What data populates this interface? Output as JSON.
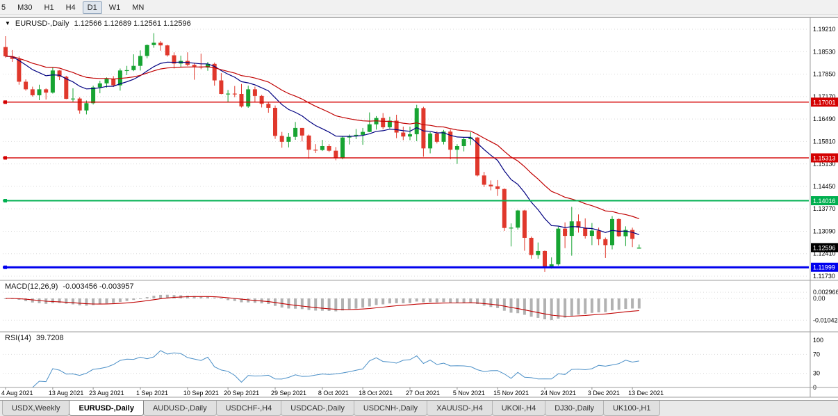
{
  "icons": {
    "collapse_triangle": "▼"
  },
  "toolbar": {
    "timeframes": [
      {
        "label": "5"
      },
      {
        "label": "M30"
      },
      {
        "label": "H1"
      },
      {
        "label": "H4"
      },
      {
        "label": "D1",
        "active": true
      },
      {
        "label": "W1"
      },
      {
        "label": "MN"
      }
    ]
  },
  "chart": {
    "symbol_label": "EURUSD-,Daily",
    "ohlc_display": "1.12566 1.12689 1.12561 1.12596",
    "price_axis_labels": [
      "1.19210",
      "1.18530",
      "1.17850",
      "1.17170",
      "1.16490",
      "1.15810",
      "1.15130",
      "1.14450",
      "1.13770",
      "1.13090",
      "1.12410",
      "1.11730"
    ],
    "hlines": [
      {
        "name": "resistance-line-upper",
        "value": 1.17001,
        "label": "1.17001",
        "color": "#d40000",
        "width": 1.4
      },
      {
        "name": "resistance-line-mid",
        "value": 1.15313,
        "label": "1.15313",
        "color": "#d40000",
        "width": 1.4
      },
      {
        "name": "support-line-green",
        "value": 1.14016,
        "label": "1.14016",
        "color": "#00b050",
        "width": 2
      },
      {
        "name": "support-line-blue",
        "value": 1.11999,
        "label": "1.11999",
        "color": "#0000ee",
        "width": 3
      }
    ],
    "current_price": {
      "value": 1.12596,
      "label": "1.12596",
      "color": "#000000"
    },
    "date_labels": [
      {
        "index": 0,
        "text": "4 Aug 2021"
      },
      {
        "index": 7,
        "text": "13 Aug 2021"
      },
      {
        "index": 13,
        "text": "23 Aug 2021"
      },
      {
        "index": 20,
        "text": "1 Sep 2021"
      },
      {
        "index": 27,
        "text": "10 Sep 2021"
      },
      {
        "index": 33,
        "text": "20 Sep 2021"
      },
      {
        "index": 40,
        "text": "29 Sep 2021"
      },
      {
        "index": 47,
        "text": "8 Oct 2021"
      },
      {
        "index": 53,
        "text": "18 Oct 2021"
      },
      {
        "index": 60,
        "text": "27 Oct 2021"
      },
      {
        "index": 67,
        "text": "5 Nov 2021"
      },
      {
        "index": 73,
        "text": "15 Nov 2021"
      },
      {
        "index": 80,
        "text": "24 Nov 2021"
      },
      {
        "index": 87,
        "text": "3 Dec 2021"
      },
      {
        "index": 93,
        "text": "13 Dec 2021"
      }
    ],
    "colors": {
      "up": "#17a432",
      "down": "#e0382c",
      "ma_fast": "#000080",
      "ma_slow": "#c00000"
    }
  },
  "macd": {
    "title": "MACD(12,26,9)",
    "values": "-0.003456 -0.003957",
    "axis_labels": [
      {
        "value": 0.002966,
        "text": "0.002966"
      },
      {
        "value": 0,
        "text": "0.00"
      },
      {
        "value": -0.010424,
        "text": "-0.010424"
      }
    ],
    "histogram_color": "#b2b2b2",
    "signal_color": "#c00000"
  },
  "rsi": {
    "title": "RSI(14)",
    "value": "39.7208",
    "axis_labels": [
      {
        "value": 100,
        "text": "100"
      },
      {
        "value": 70,
        "text": "70"
      },
      {
        "value": 30,
        "text": "30"
      },
      {
        "value": 0,
        "text": "0"
      }
    ],
    "line_color": "#4a8fc7"
  },
  "tabs": [
    {
      "label": "USDX,Weekly"
    },
    {
      "label": "EURUSD-,Daily",
      "active": true
    },
    {
      "label": "AUDUSD-,Daily"
    },
    {
      "label": "USDCHF-,H4"
    },
    {
      "label": "USDCAD-,Daily"
    },
    {
      "label": "USDCNH-,Daily"
    },
    {
      "label": "XAUUSD-,H4"
    },
    {
      "label": "UKOil-,H4"
    },
    {
      "label": "DJ30-,Daily"
    },
    {
      "label": "UK100-,H1"
    }
  ],
  "chart_data": {
    "type": "candlestick",
    "symbol": "EURUSD-",
    "period": "Daily",
    "title": "EURUSD-,Daily",
    "y_range": [
      1.1173,
      1.1921
    ],
    "overlays": [
      "EMA(12)",
      "EMA(26)"
    ],
    "lower_panels": [
      "MACD(12,26,9)",
      "RSI(14)"
    ],
    "x_axis_labels": [
      "4 Aug 2021",
      "13 Aug 2021",
      "23 Aug 2021",
      "1 Sep 2021",
      "10 Sep 2021",
      "20 Sep 2021",
      "29 Sep 2021",
      "8 Oct 2021",
      "18 Oct 2021",
      "27 Oct 2021",
      "5 Nov 2021",
      "15 Nov 2021",
      "24 Nov 2021",
      "3 Dec 2021",
      "13 Dec 2021"
    ],
    "ohlc": [
      [
        1.1867,
        1.19,
        1.1835,
        1.1839
      ],
      [
        1.1839,
        1.1858,
        1.1822,
        1.1831
      ],
      [
        1.1831,
        1.1839,
        1.1753,
        1.1762
      ],
      [
        1.1762,
        1.1769,
        1.1735,
        1.1739
      ],
      [
        1.1739,
        1.1747,
        1.1717,
        1.1721
      ],
      [
        1.1721,
        1.1753,
        1.1706,
        1.1739
      ],
      [
        1.1739,
        1.1742,
        1.1708,
        1.1729
      ],
      [
        1.1729,
        1.1805,
        1.1726,
        1.1796
      ],
      [
        1.1796,
        1.1797,
        1.1767,
        1.1777
      ],
      [
        1.1777,
        1.178,
        1.1709,
        1.171
      ],
      [
        1.171,
        1.1742,
        1.1701,
        1.1711
      ],
      [
        1.1711,
        1.1715,
        1.1665,
        1.1675
      ],
      [
        1.1675,
        1.1705,
        1.1663,
        1.1697
      ],
      [
        1.1697,
        1.175,
        1.1693,
        1.1745
      ],
      [
        1.1745,
        1.1765,
        1.1727,
        1.1757
      ],
      [
        1.1757,
        1.1775,
        1.1744,
        1.1771
      ],
      [
        1.1771,
        1.1779,
        1.1746,
        1.1751
      ],
      [
        1.1751,
        1.1802,
        1.1735,
        1.1796
      ],
      [
        1.1796,
        1.181,
        1.1782,
        1.1797
      ],
      [
        1.1797,
        1.1845,
        1.1794,
        1.181
      ],
      [
        1.181,
        1.1857,
        1.1796,
        1.184
      ],
      [
        1.184,
        1.1875,
        1.1833,
        1.1873
      ],
      [
        1.1873,
        1.1909,
        1.1865,
        1.188
      ],
      [
        1.188,
        1.1885,
        1.1856,
        1.1872
      ],
      [
        1.1872,
        1.1874,
        1.1838,
        1.1842
      ],
      [
        1.1842,
        1.1851,
        1.1802,
        1.1817
      ],
      [
        1.1817,
        1.1841,
        1.1805,
        1.1825
      ],
      [
        1.1825,
        1.1851,
        1.1809,
        1.1813
      ],
      [
        1.1813,
        1.1818,
        1.1768,
        1.1808
      ],
      [
        1.1808,
        1.1847,
        1.18,
        1.1805
      ],
      [
        1.1805,
        1.1822,
        1.1795,
        1.1816
      ],
      [
        1.1816,
        1.182,
        1.175,
        1.1766
      ],
      [
        1.1766,
        1.1788,
        1.1724,
        1.1725
      ],
      [
        1.1725,
        1.1737,
        1.17,
        1.1726
      ],
      [
        1.1726,
        1.1749,
        1.1715,
        1.1725
      ],
      [
        1.1725,
        1.1755,
        1.1684,
        1.1687
      ],
      [
        1.1687,
        1.175,
        1.1683,
        1.1739
      ],
      [
        1.1739,
        1.1747,
        1.1701,
        1.1719
      ],
      [
        1.1719,
        1.1722,
        1.1684,
        1.1695
      ],
      [
        1.1695,
        1.17,
        1.1668,
        1.1683
      ],
      [
        1.1683,
        1.169,
        1.1589,
        1.1598
      ],
      [
        1.1598,
        1.161,
        1.1562,
        1.158
      ],
      [
        1.158,
        1.1607,
        1.1563,
        1.1595
      ],
      [
        1.1595,
        1.164,
        1.1586,
        1.1622
      ],
      [
        1.1622,
        1.1622,
        1.1581,
        1.1599
      ],
      [
        1.1599,
        1.1602,
        1.1529,
        1.1556
      ],
      [
        1.1556,
        1.1573,
        1.1546,
        1.1555
      ],
      [
        1.1555,
        1.1586,
        1.1552,
        1.1567
      ],
      [
        1.1567,
        1.1573,
        1.1549,
        1.1553
      ],
      [
        1.1553,
        1.1564,
        1.1524,
        1.153
      ],
      [
        1.153,
        1.1597,
        1.1527,
        1.1593
      ],
      [
        1.1593,
        1.1602,
        1.1572,
        1.1597
      ],
      [
        1.1597,
        1.1619,
        1.1588,
        1.1601
      ],
      [
        1.1601,
        1.1622,
        1.1571,
        1.161
      ],
      [
        1.161,
        1.1669,
        1.1609,
        1.1633
      ],
      [
        1.1633,
        1.1658,
        1.1617,
        1.1652
      ],
      [
        1.1652,
        1.1667,
        1.1618,
        1.1624
      ],
      [
        1.1624,
        1.1656,
        1.162,
        1.1644
      ],
      [
        1.1644,
        1.1662,
        1.1591,
        1.1608
      ],
      [
        1.1608,
        1.1626,
        1.1585,
        1.1596
      ],
      [
        1.1596,
        1.1626,
        1.1585,
        1.1603
      ],
      [
        1.1603,
        1.1692,
        1.1582,
        1.1682
      ],
      [
        1.1682,
        1.1686,
        1.1535,
        1.156
      ],
      [
        1.156,
        1.1609,
        1.1545,
        1.1605
      ],
      [
        1.1605,
        1.1612,
        1.1575,
        1.158
      ],
      [
        1.158,
        1.1616,
        1.1572,
        1.1611
      ],
      [
        1.1611,
        1.1617,
        1.1527,
        1.1556
      ],
      [
        1.1556,
        1.1573,
        1.1513,
        1.1567
      ],
      [
        1.1567,
        1.1593,
        1.1551,
        1.1588
      ],
      [
        1.1588,
        1.1609,
        1.157,
        1.1593
      ],
      [
        1.1593,
        1.1595,
        1.1475,
        1.1478
      ],
      [
        1.1478,
        1.1489,
        1.1443,
        1.145
      ],
      [
        1.145,
        1.1463,
        1.1433,
        1.1445
      ],
      [
        1.1445,
        1.1464,
        1.1416,
        1.1437
      ],
      [
        1.1437,
        1.1439,
        1.131,
        1.1319
      ],
      [
        1.1319,
        1.1333,
        1.1263,
        1.132
      ],
      [
        1.132,
        1.1374,
        1.1314,
        1.1372
      ],
      [
        1.1372,
        1.1374,
        1.125,
        1.1289
      ],
      [
        1.1289,
        1.1293,
        1.1226,
        1.1237
      ],
      [
        1.1237,
        1.1275,
        1.1226,
        1.1249
      ],
      [
        1.1249,
        1.1251,
        1.1186,
        1.12
      ],
      [
        1.12,
        1.123,
        1.1196,
        1.1209
      ],
      [
        1.1209,
        1.1323,
        1.1205,
        1.1317
      ],
      [
        1.1317,
        1.1336,
        1.1258,
        1.1295
      ],
      [
        1.1295,
        1.1383,
        1.1235,
        1.1339
      ],
      [
        1.1339,
        1.136,
        1.1305,
        1.132
      ],
      [
        1.132,
        1.1348,
        1.1287,
        1.1295
      ],
      [
        1.1295,
        1.1334,
        1.1267,
        1.1311
      ],
      [
        1.1311,
        1.132,
        1.1267,
        1.1285
      ],
      [
        1.1285,
        1.129,
        1.1228,
        1.1267
      ],
      [
        1.1267,
        1.1355,
        1.1254,
        1.1346
      ],
      [
        1.1346,
        1.1348,
        1.1292,
        1.1294
      ],
      [
        1.1294,
        1.1324,
        1.1264,
        1.1313
      ],
      [
        1.1313,
        1.132,
        1.1261,
        1.1286
      ],
      [
        1.12566,
        1.12689,
        1.12561,
        1.12596
      ]
    ]
  }
}
